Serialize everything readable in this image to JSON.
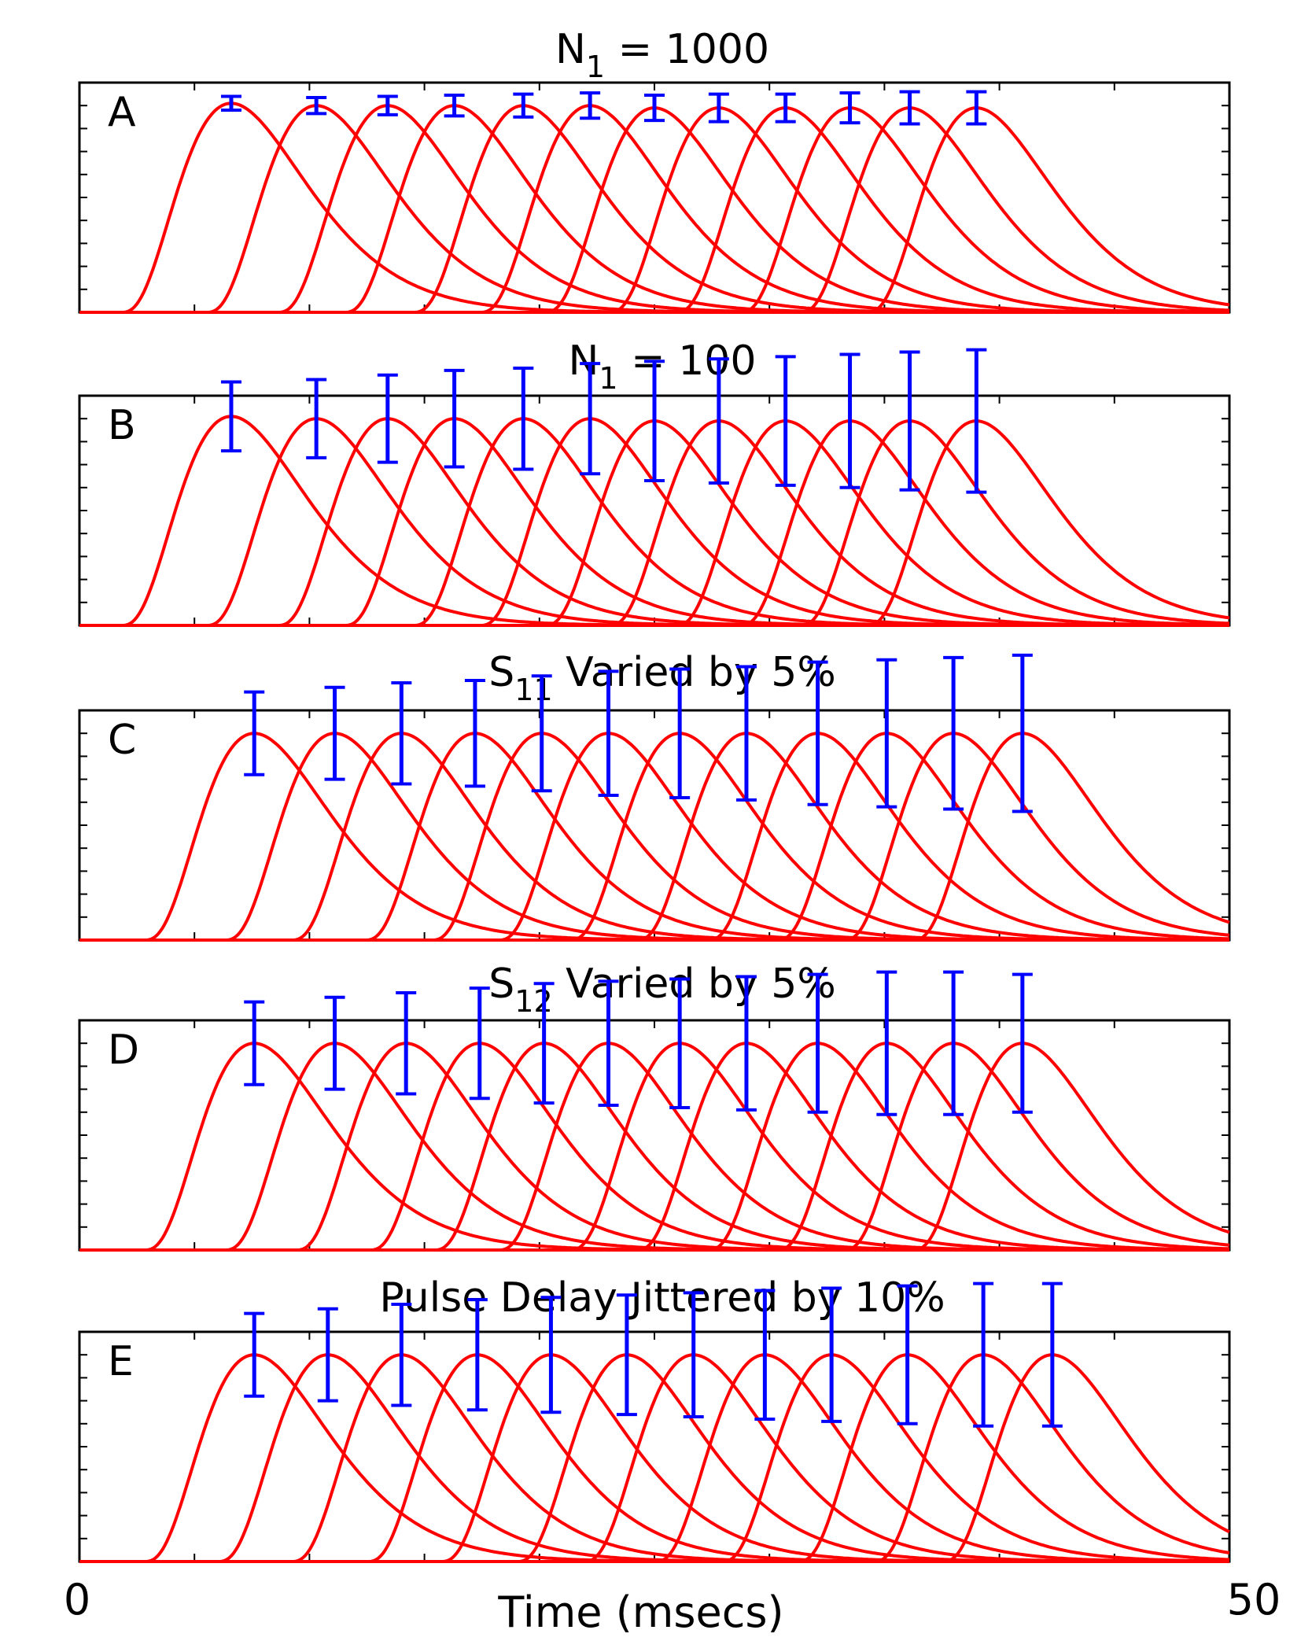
{
  "figure": {
    "x_axis": {
      "label": "Time (msecs)",
      "min_label": "0",
      "max_label": "50"
    }
  },
  "chart_data": [
    {
      "type": "line",
      "panel_letter": "A",
      "title": {
        "main": "N",
        "subscript": "1",
        "rest": " = 1000"
      },
      "xlim": [
        0,
        50
      ],
      "ylim": [
        0,
        1
      ],
      "pulse_peak_times": [
        6.6,
        10.3,
        13.4,
        16.3,
        19.3,
        22.2,
        25.0,
        27.8,
        30.7,
        33.5,
        36.1,
        39.0
      ],
      "peak_values": [
        0.91,
        0.9,
        0.9,
        0.9,
        0.9,
        0.9,
        0.89,
        0.89,
        0.89,
        0.89,
        0.89,
        0.89
      ],
      "error_bars": [
        {
          "x": 6.6,
          "y": 0.91,
          "err": 0.03
        },
        {
          "x": 10.3,
          "y": 0.9,
          "err": 0.035
        },
        {
          "x": 13.4,
          "y": 0.9,
          "err": 0.04
        },
        {
          "x": 16.3,
          "y": 0.9,
          "err": 0.045
        },
        {
          "x": 19.3,
          "y": 0.9,
          "err": 0.05
        },
        {
          "x": 22.2,
          "y": 0.9,
          "err": 0.055
        },
        {
          "x": 25.0,
          "y": 0.89,
          "err": 0.055
        },
        {
          "x": 27.8,
          "y": 0.89,
          "err": 0.06
        },
        {
          "x": 30.7,
          "y": 0.89,
          "err": 0.06
        },
        {
          "x": 33.5,
          "y": 0.89,
          "err": 0.065
        },
        {
          "x": 36.1,
          "y": 0.89,
          "err": 0.07
        },
        {
          "x": 39.0,
          "y": 0.89,
          "err": 0.07
        }
      ]
    },
    {
      "type": "line",
      "panel_letter": "B",
      "title": {
        "main": "N",
        "subscript": "1",
        "rest": " = 100"
      },
      "xlim": [
        0,
        50
      ],
      "ylim": [
        0,
        1
      ],
      "pulse_peak_times": [
        6.6,
        10.3,
        13.4,
        16.3,
        19.3,
        22.2,
        25.0,
        27.8,
        30.7,
        33.5,
        36.1,
        39.0
      ],
      "peak_values": [
        0.91,
        0.9,
        0.9,
        0.9,
        0.9,
        0.9,
        0.89,
        0.89,
        0.89,
        0.89,
        0.89,
        0.89
      ],
      "error_bars": [
        {
          "x": 6.6,
          "y": 0.91,
          "err": 0.15
        },
        {
          "x": 10.3,
          "y": 0.9,
          "err": 0.17
        },
        {
          "x": 13.4,
          "y": 0.9,
          "err": 0.19
        },
        {
          "x": 16.3,
          "y": 0.9,
          "err": 0.21
        },
        {
          "x": 19.3,
          "y": 0.9,
          "err": 0.22
        },
        {
          "x": 22.2,
          "y": 0.9,
          "err": 0.24
        },
        {
          "x": 25.0,
          "y": 0.89,
          "err": 0.26
        },
        {
          "x": 27.8,
          "y": 0.89,
          "err": 0.27
        },
        {
          "x": 30.7,
          "y": 0.89,
          "err": 0.28
        },
        {
          "x": 33.5,
          "y": 0.89,
          "err": 0.29
        },
        {
          "x": 36.1,
          "y": 0.89,
          "err": 0.3
        },
        {
          "x": 39.0,
          "y": 0.89,
          "err": 0.31
        }
      ]
    },
    {
      "type": "line",
      "panel_letter": "C",
      "title": {
        "main": "S",
        "subscript": "11",
        "rest": " Varied by 5%"
      },
      "xlim": [
        0,
        50
      ],
      "ylim": [
        0,
        1
      ],
      "pulse_peak_times": [
        7.6,
        11.1,
        14.0,
        17.2,
        20.1,
        23.0,
        26.1,
        29.0,
        32.1,
        35.1,
        38.0,
        41.0
      ],
      "peak_values": [
        0.9,
        0.9,
        0.9,
        0.9,
        0.9,
        0.9,
        0.9,
        0.9,
        0.9,
        0.9,
        0.9,
        0.9
      ],
      "error_bars": [
        {
          "x": 7.6,
          "y": 0.9,
          "err": 0.18
        },
        {
          "x": 11.1,
          "y": 0.9,
          "err": 0.2
        },
        {
          "x": 14.0,
          "y": 0.9,
          "err": 0.22
        },
        {
          "x": 17.2,
          "y": 0.9,
          "err": 0.23
        },
        {
          "x": 20.1,
          "y": 0.9,
          "err": 0.25
        },
        {
          "x": 23.0,
          "y": 0.9,
          "err": 0.27
        },
        {
          "x": 26.1,
          "y": 0.9,
          "err": 0.28
        },
        {
          "x": 29.0,
          "y": 0.9,
          "err": 0.29
        },
        {
          "x": 32.1,
          "y": 0.9,
          "err": 0.31
        },
        {
          "x": 35.1,
          "y": 0.9,
          "err": 0.32
        },
        {
          "x": 38.0,
          "y": 0.9,
          "err": 0.33
        },
        {
          "x": 41.0,
          "y": 0.9,
          "err": 0.34
        }
      ]
    },
    {
      "type": "line",
      "panel_letter": "D",
      "title": {
        "main": "S",
        "subscript": "12",
        "rest": "  Varied by 5%"
      },
      "xlim": [
        0,
        50
      ],
      "ylim": [
        0,
        1
      ],
      "pulse_peak_times": [
        7.6,
        11.1,
        14.2,
        17.4,
        20.2,
        23.0,
        26.1,
        29.0,
        32.1,
        35.1,
        38.0,
        41.0
      ],
      "peak_values": [
        0.9,
        0.9,
        0.9,
        0.9,
        0.9,
        0.9,
        0.9,
        0.9,
        0.9,
        0.9,
        0.9,
        0.9
      ],
      "error_bars": [
        {
          "x": 7.6,
          "y": 0.9,
          "err": 0.18
        },
        {
          "x": 11.1,
          "y": 0.9,
          "err": 0.2
        },
        {
          "x": 14.2,
          "y": 0.9,
          "err": 0.22
        },
        {
          "x": 17.4,
          "y": 0.9,
          "err": 0.24
        },
        {
          "x": 20.2,
          "y": 0.9,
          "err": 0.26
        },
        {
          "x": 23.0,
          "y": 0.9,
          "err": 0.27
        },
        {
          "x": 26.1,
          "y": 0.9,
          "err": 0.28
        },
        {
          "x": 29.0,
          "y": 0.9,
          "err": 0.29
        },
        {
          "x": 32.1,
          "y": 0.9,
          "err": 0.3
        },
        {
          "x": 35.1,
          "y": 0.9,
          "err": 0.31
        },
        {
          "x": 38.0,
          "y": 0.9,
          "err": 0.31
        },
        {
          "x": 41.0,
          "y": 0.9,
          "err": 0.3
        }
      ]
    },
    {
      "type": "line",
      "panel_letter": "E",
      "title": {
        "main": "Pulse Delay Jittered by 10%",
        "subscript": "",
        "rest": ""
      },
      "xlim": [
        0,
        50
      ],
      "ylim": [
        0,
        1
      ],
      "pulse_peak_times": [
        7.6,
        10.8,
        14.0,
        17.3,
        20.5,
        23.8,
        26.7,
        29.8,
        32.7,
        36.0,
        39.3,
        42.3
      ],
      "peak_values": [
        0.9,
        0.9,
        0.9,
        0.9,
        0.9,
        0.9,
        0.9,
        0.9,
        0.9,
        0.9,
        0.9,
        0.9
      ],
      "error_bars": [
        {
          "x": 7.6,
          "y": 0.9,
          "err": 0.18
        },
        {
          "x": 10.8,
          "y": 0.9,
          "err": 0.2
        },
        {
          "x": 14.0,
          "y": 0.9,
          "err": 0.22
        },
        {
          "x": 17.3,
          "y": 0.9,
          "err": 0.24
        },
        {
          "x": 20.5,
          "y": 0.9,
          "err": 0.25
        },
        {
          "x": 23.8,
          "y": 0.9,
          "err": 0.26
        },
        {
          "x": 26.7,
          "y": 0.9,
          "err": 0.27
        },
        {
          "x": 29.8,
          "y": 0.9,
          "err": 0.28
        },
        {
          "x": 32.7,
          "y": 0.9,
          "err": 0.29
        },
        {
          "x": 36.0,
          "y": 0.9,
          "err": 0.3
        },
        {
          "x": 39.3,
          "y": 0.9,
          "err": 0.31
        },
        {
          "x": 42.3,
          "y": 0.9,
          "err": 0.31
        }
      ]
    }
  ],
  "colors": {
    "curve": "#ff0000",
    "error_bar": "#0000ff",
    "axis": "#000000"
  }
}
